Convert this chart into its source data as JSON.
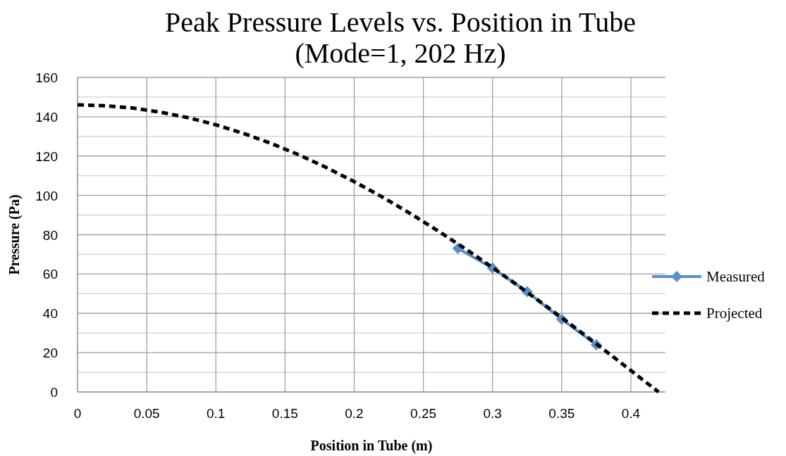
{
  "chart_data": {
    "type": "line",
    "title": "Peak Pressure Levels vs. Position in Tube\n(Mode=1, 202 Hz)",
    "xlabel": "Position in Tube (m)",
    "ylabel": "Pressure (Pa)",
    "xlim": [
      0,
      0.425
    ],
    "xticks": [
      0,
      0.05,
      0.1,
      0.15,
      0.2,
      0.25,
      0.3,
      0.35,
      0.4
    ],
    "ylim": [
      0,
      160
    ],
    "yticks": [
      0,
      {
        "value": 10,
        "label": null
      },
      20,
      {
        "value": 30,
        "label": null
      },
      40,
      {
        "value": 50,
        "label": null
      },
      60,
      {
        "value": 70,
        "label": null
      },
      80,
      {
        "value": 90,
        "label": null
      },
      100,
      {
        "value": 110,
        "label": null
      },
      120,
      {
        "value": 130,
        "label": null
      },
      140,
      {
        "value": 150,
        "label": null
      },
      160
    ],
    "grid": true,
    "legend": "right",
    "series": [
      {
        "name": "Measured",
        "color": "#5b8fc9",
        "marker": "diamond",
        "line_style": "solid",
        "x": [
          0.275,
          0.3,
          0.325,
          0.35,
          0.375
        ],
        "values": [
          73,
          63,
          51,
          37,
          24
        ]
      },
      {
        "name": "Projected",
        "color": "#000000",
        "marker": "none",
        "line_style": "dashed",
        "x": [
          0,
          0.02,
          0.04,
          0.06,
          0.08,
          0.1,
          0.12,
          0.14,
          0.16,
          0.18,
          0.2,
          0.22,
          0.24,
          0.26,
          0.28,
          0.3,
          0.32,
          0.34,
          0.36,
          0.38,
          0.4,
          0.42
        ],
        "values": [
          146,
          145.6,
          144.4,
          142.3,
          139.5,
          135.9,
          131.5,
          126.4,
          120.6,
          114.1,
          107,
          99.3,
          91,
          82.2,
          73,
          63.3,
          53.3,
          43,
          32.5,
          21.8,
          10.9,
          0
        ]
      }
    ]
  }
}
